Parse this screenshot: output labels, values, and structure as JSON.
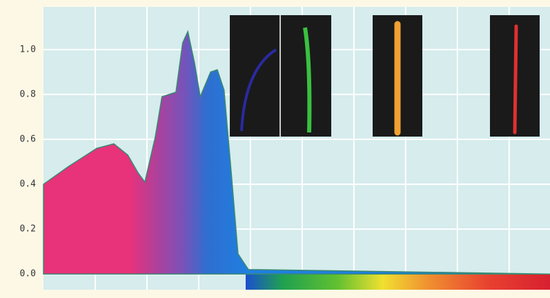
{
  "chart_data": {
    "type": "area",
    "x": [
      0,
      0.49,
      1.03,
      1.36,
      1.63,
      1.83,
      1.96,
      2.16,
      2.29,
      2.56,
      2.69,
      2.79,
      2.92,
      3.03,
      3.23,
      3.36,
      3.49,
      3.63,
      3.76,
      3.96,
      9.79
    ],
    "values": [
      0.4,
      0.48,
      0.56,
      0.58,
      0.53,
      0.45,
      0.41,
      0.61,
      0.79,
      0.81,
      1.03,
      1.08,
      0.94,
      0.79,
      0.9,
      0.91,
      0.82,
      0.45,
      0.09,
      0.02,
      0.0
    ],
    "xlim": [
      0,
      9.79
    ],
    "xticks": [
      1,
      2,
      3,
      4,
      5,
      6,
      7,
      8,
      9
    ],
    "ylim": [
      -0.07,
      1.19
    ],
    "yticks": [
      {
        "value": 0,
        "label": "0.0"
      },
      0.2,
      0.4,
      0.6,
      0.8,
      {
        "value": 1,
        "label": "1.0"
      }
    ],
    "grid": true,
    "grid_color": "#ffffff",
    "plot_background": "#d6eced",
    "fill_stops": [
      "#e8327a",
      "#e8327a",
      "#b0409a",
      "#7a52b8",
      "#2e6fd0",
      "#1f7fe0"
    ]
  }
}
